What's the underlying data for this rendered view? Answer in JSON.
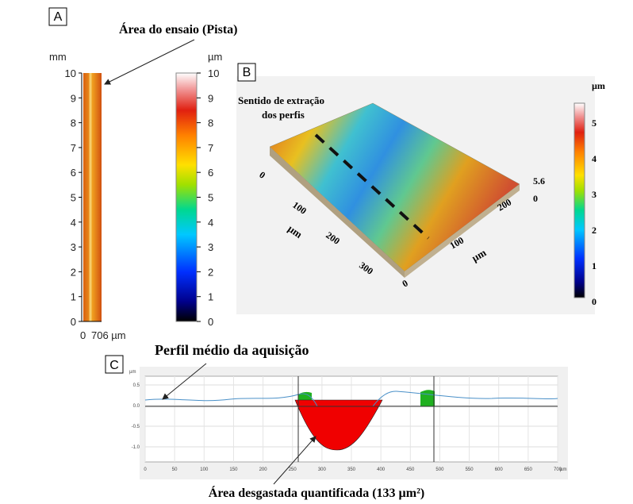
{
  "panel_a": {
    "label": "A",
    "annotation": "Área do ensaio (Pista)",
    "y_unit": "mm",
    "yticks": [
      "0",
      "1",
      "2",
      "3",
      "4",
      "5",
      "6",
      "7",
      "8",
      "9",
      "10"
    ],
    "xticks": [
      "0",
      "706 µm"
    ],
    "colorbar_unit": "µm",
    "colorbar_ticks": [
      "0",
      "1",
      "2",
      "3",
      "4",
      "5",
      "6",
      "7",
      "8",
      "9",
      "10"
    ]
  },
  "panel_b": {
    "label": "B",
    "annotation": [
      "Sentido de extração",
      "dos perfis"
    ],
    "colorbar_unit": "µm",
    "colorbar_ticks": [
      "0",
      "1",
      "2",
      "3",
      "4",
      "5"
    ],
    "x_ticks": [
      "0",
      "100",
      "200",
      "300"
    ],
    "x_unit": "µm",
    "y_ticks": [
      "0",
      "100",
      "200"
    ],
    "y_unit": "µm",
    "z_ticks": [
      "5.6",
      "0"
    ]
  },
  "panel_c": {
    "label": "C",
    "title": "Perfil médio da aquisição",
    "y_unit": "µm",
    "yticks": [
      "0.5",
      "0.0",
      "-0.5",
      "-1.0"
    ],
    "xticks": [
      "0",
      "50",
      "100",
      "150",
      "200",
      "250",
      "300",
      "350",
      "400",
      "450",
      "500",
      "550",
      "600",
      "650",
      "700"
    ],
    "x_unit": "µm",
    "caption": "Área desgastada quantificada  (133 µm²)"
  }
}
